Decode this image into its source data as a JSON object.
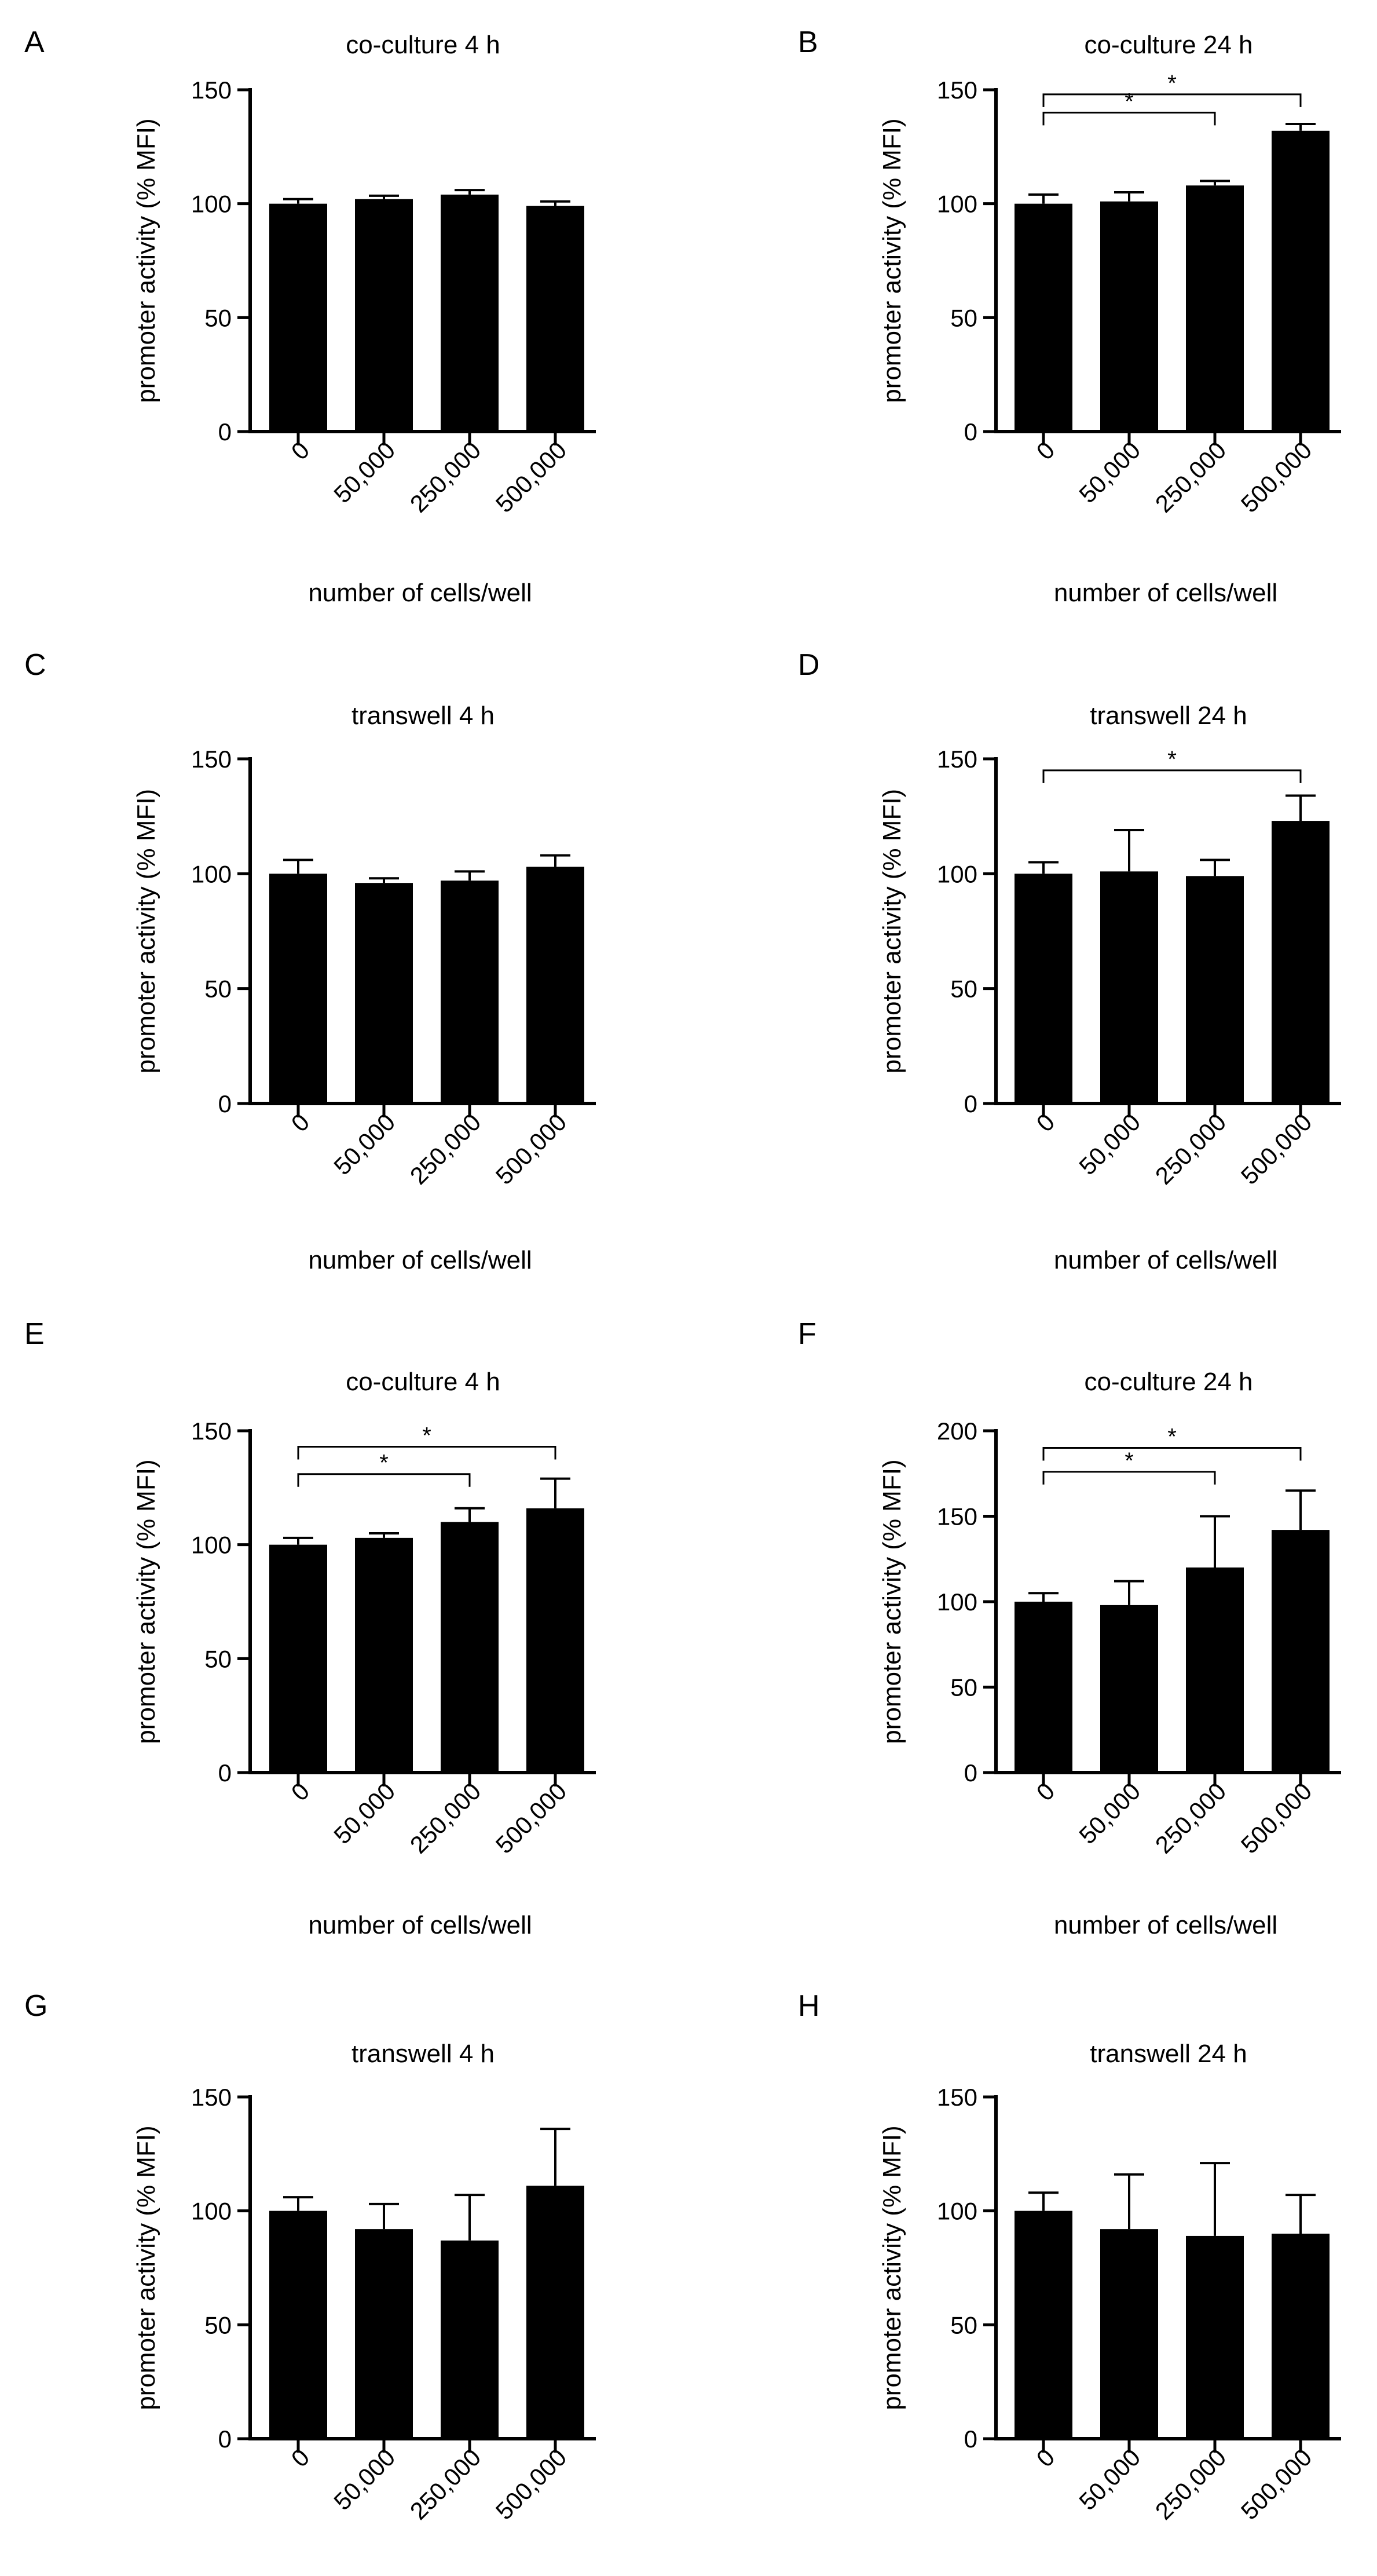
{
  "figure": {
    "common_ylabel": "promoter activity (% MFI)",
    "common_xlabel": "number of cells/well"
  },
  "chart_data": [
    {
      "panel": "A",
      "type": "bar",
      "title": "co-culture 4 h",
      "xlabel": "number of cells/well",
      "ylabel": "promoter activity (% MFI)",
      "categories": [
        "0",
        "50,000",
        "250,000",
        "500,000"
      ],
      "values": [
        100,
        102,
        104,
        99
      ],
      "errors": [
        2,
        1.5,
        2,
        2
      ],
      "ylim": [
        0,
        150
      ],
      "yticks": [
        0,
        50,
        100,
        150
      ],
      "grid": false,
      "significance": []
    },
    {
      "panel": "B",
      "type": "bar",
      "title": "co-culture 24 h",
      "xlabel": "number of cells/well",
      "ylabel": "promoter activity (% MFI)",
      "categories": [
        "0",
        "50,000",
        "250,000",
        "500,000"
      ],
      "values": [
        100,
        101,
        108,
        132
      ],
      "errors": [
        4,
        4,
        2,
        3
      ],
      "ylim": [
        0,
        150
      ],
      "yticks": [
        0,
        50,
        100,
        150
      ],
      "grid": false,
      "significance": [
        {
          "from": 0,
          "to": 2,
          "label": "*",
          "level": 140
        },
        {
          "from": 0,
          "to": 3,
          "label": "*",
          "level": 148
        }
      ]
    },
    {
      "panel": "C",
      "type": "bar",
      "title": "transwell 4 h",
      "xlabel": "number of cells/well",
      "ylabel": "promoter activity (% MFI)",
      "categories": [
        "0",
        "50,000",
        "250,000",
        "500,000"
      ],
      "values": [
        100,
        96,
        97,
        103
      ],
      "errors": [
        6,
        2,
        4,
        5
      ],
      "ylim": [
        0,
        150
      ],
      "yticks": [
        0,
        50,
        100,
        150
      ],
      "grid": false,
      "significance": []
    },
    {
      "panel": "D",
      "type": "bar",
      "title": "transwell 24 h",
      "xlabel": "number of cells/well",
      "ylabel": "promoter activity (% MFI)",
      "categories": [
        "0",
        "50,000",
        "250,000",
        "500,000"
      ],
      "values": [
        100,
        101,
        99,
        123
      ],
      "errors": [
        5,
        18,
        7,
        11
      ],
      "ylim": [
        0,
        150
      ],
      "yticks": [
        0,
        50,
        100,
        150
      ],
      "grid": false,
      "significance": [
        {
          "from": 0,
          "to": 3,
          "label": "*",
          "level": 145
        }
      ]
    },
    {
      "panel": "E",
      "type": "bar",
      "title": "co-culture 4 h",
      "xlabel": "number of cells/well",
      "ylabel": "promoter activity (% MFI)",
      "categories": [
        "0",
        "50,000",
        "250,000",
        "500,000"
      ],
      "values": [
        100,
        103,
        110,
        116
      ],
      "errors": [
        3,
        2,
        6,
        13
      ],
      "ylim": [
        0,
        150
      ],
      "yticks": [
        0,
        50,
        100,
        150
      ],
      "grid": false,
      "significance": [
        {
          "from": 0,
          "to": 2,
          "label": "*",
          "level": 131
        },
        {
          "from": 0,
          "to": 3,
          "label": "*",
          "level": 143
        }
      ]
    },
    {
      "panel": "F",
      "type": "bar",
      "title": "co-culture 24 h",
      "xlabel": "number of cells/well",
      "ylabel": "promoter activity (% MFI)",
      "categories": [
        "0",
        "50,000",
        "250,000",
        "500,000"
      ],
      "values": [
        100,
        98,
        120,
        142
      ],
      "errors": [
        5,
        14,
        30,
        23
      ],
      "ylim": [
        0,
        200
      ],
      "yticks": [
        0,
        50,
        100,
        150,
        200
      ],
      "grid": false,
      "significance": [
        {
          "from": 0,
          "to": 2,
          "label": "*",
          "level": 176
        },
        {
          "from": 0,
          "to": 3,
          "label": "*",
          "level": 190
        }
      ]
    },
    {
      "panel": "G",
      "type": "bar",
      "title": "transwell 4 h",
      "xlabel": "number of cells/well",
      "ylabel": "promoter activity (% MFI)",
      "categories": [
        "0",
        "50,000",
        "250,000",
        "500,000"
      ],
      "values": [
        100,
        92,
        87,
        111
      ],
      "errors": [
        6,
        11,
        20,
        25
      ],
      "ylim": [
        0,
        150
      ],
      "yticks": [
        0,
        50,
        100,
        150
      ],
      "grid": false,
      "significance": []
    },
    {
      "panel": "H",
      "type": "bar",
      "title": "transwell 24 h",
      "xlabel": "number of cells/well",
      "ylabel": "promoter activity (% MFI)",
      "categories": [
        "0",
        "50,000",
        "250,000",
        "500,000"
      ],
      "values": [
        100,
        92,
        89,
        90
      ],
      "errors": [
        8,
        24,
        32,
        17
      ],
      "ylim": [
        0,
        150
      ],
      "yticks": [
        0,
        50,
        100,
        150
      ],
      "grid": false,
      "significance": []
    }
  ]
}
